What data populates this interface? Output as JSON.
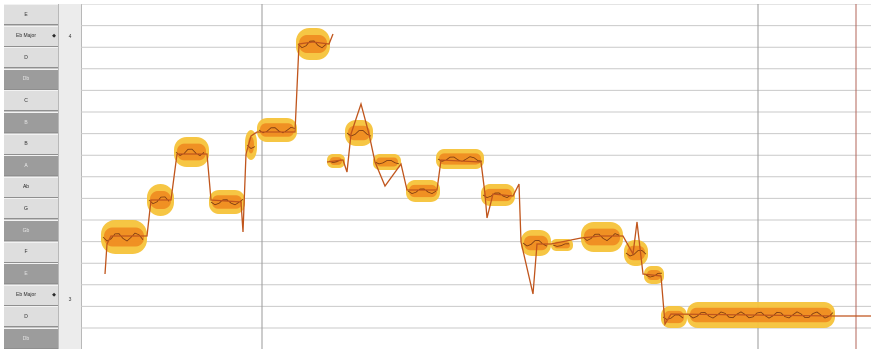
{
  "rows": [
    {
      "label": "E",
      "scale": "",
      "black": false
    },
    {
      "label": "Eb Major",
      "scale": "◆",
      "black": false
    },
    {
      "label": "D",
      "scale": "",
      "black": false
    },
    {
      "label": "Db",
      "scale": "",
      "black": true
    },
    {
      "label": "C",
      "scale": "",
      "black": false
    },
    {
      "label": "B",
      "scale": "",
      "black": true
    },
    {
      "label": "B",
      "scale": "",
      "black": false
    },
    {
      "label": "A",
      "scale": "",
      "black": true
    },
    {
      "label": "Ab",
      "scale": "",
      "black": false
    },
    {
      "label": "G",
      "scale": "",
      "black": false
    },
    {
      "label": "Gb",
      "scale": "",
      "black": true
    },
    {
      "label": "F",
      "scale": "",
      "black": false
    },
    {
      "label": "E",
      "scale": "",
      "black": true
    },
    {
      "label": "Eb Major",
      "scale": "◆",
      "black": false
    },
    {
      "label": "D",
      "scale": "",
      "black": false
    },
    {
      "label": "Db",
      "scale": "",
      "black": true
    }
  ],
  "octaves": [
    "4",
    "3"
  ],
  "colors": {
    "blob_outer": "#f5c33a",
    "blob_inner": "#f08a20",
    "pitch_line": "#c0551c",
    "grid_line": "#c9c9c9",
    "bar_line": "#9a9a9a"
  }
}
